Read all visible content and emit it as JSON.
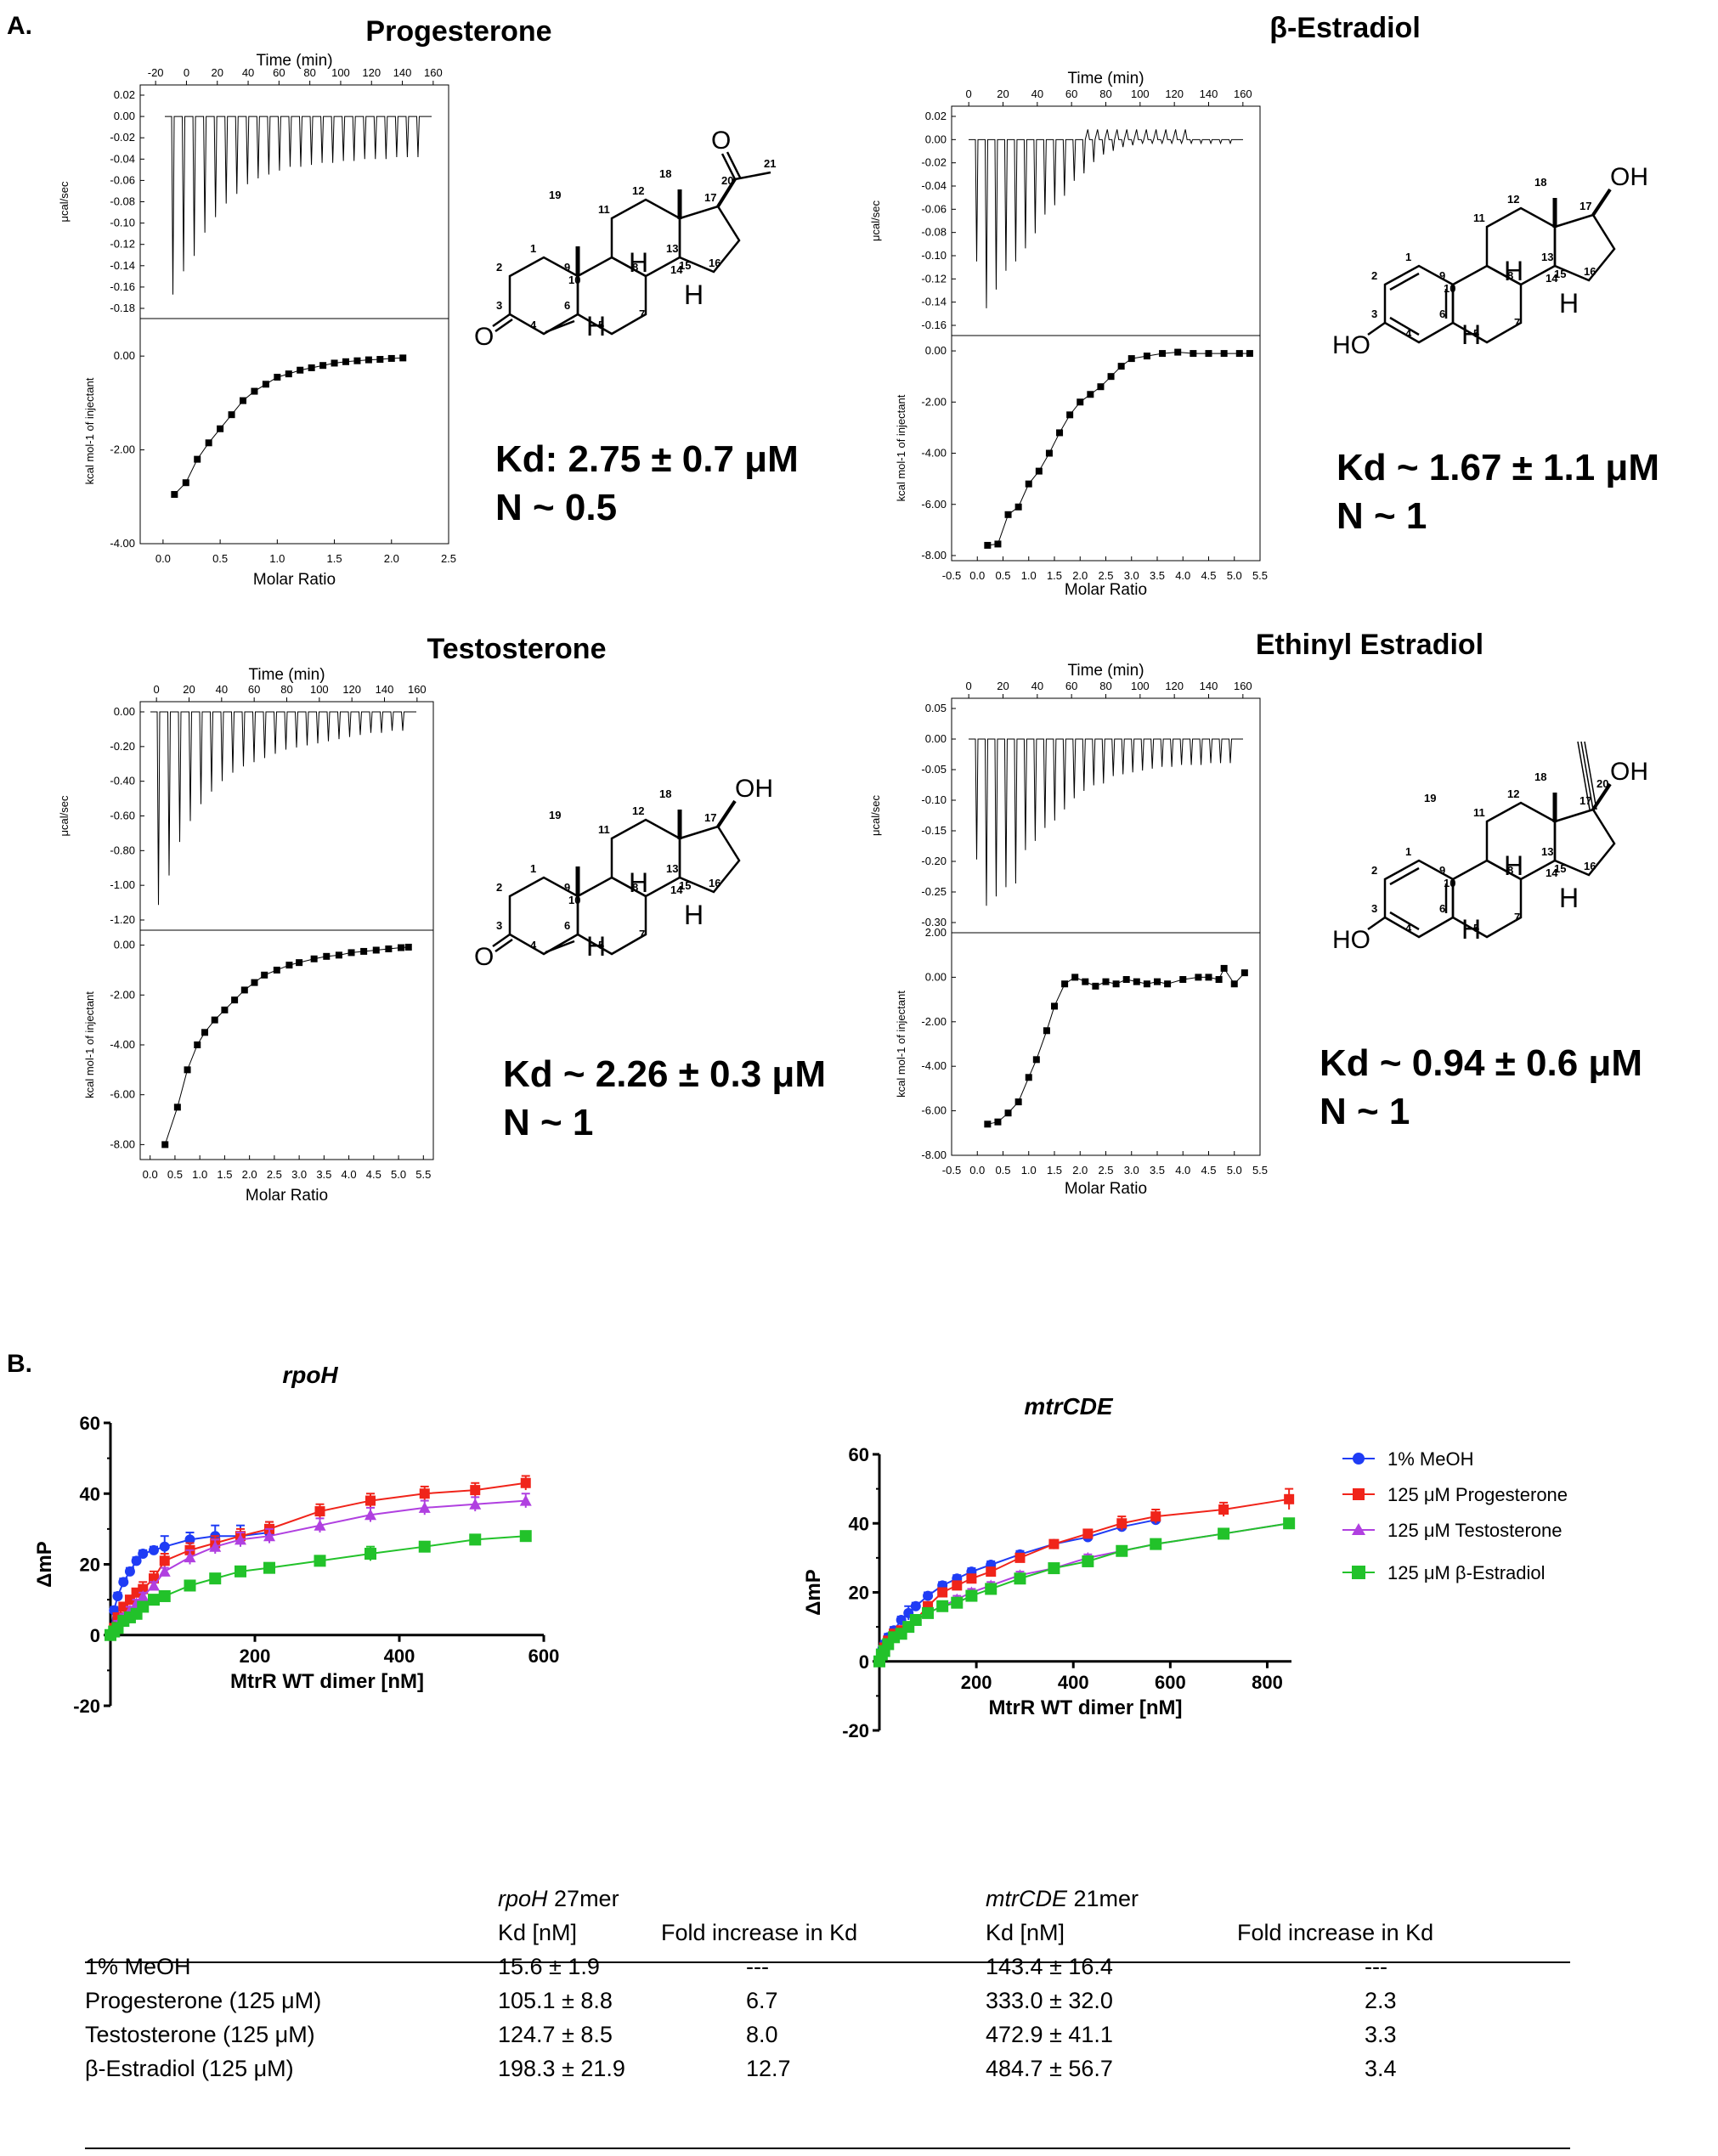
{
  "panel_a": {
    "label": "A.",
    "itc": [
      {
        "compound": "Progesterone",
        "kd_line": "Kd: 2.75 ± 0.7 μM",
        "n_line": "N ~ 0.5",
        "time_label": "Time (min)",
        "time_ticks": [
          "-20",
          "0",
          "20",
          "40",
          "60",
          "80",
          "100",
          "120",
          "140",
          "160"
        ],
        "raw_ylabel": "μcal/sec",
        "raw_ticks": [
          "0.02",
          "0.00",
          "-0.02",
          "-0.04",
          "-0.06",
          "-0.08",
          "-0.10",
          "-0.12",
          "-0.14",
          "-0.16",
          "-0.18"
        ],
        "fit_ylabel": "kcal mol-1 of injectant",
        "fit_ticks": [
          "0.00",
          "-2.00",
          "-4.00"
        ],
        "x_label": "Molar Ratio",
        "x_ticks": [
          "0.0",
          "0.5",
          "1.0",
          "1.5",
          "2.0",
          "2.5"
        ]
      },
      {
        "compound": "β-Estradiol",
        "kd_line": "Kd ~ 1.67 ± 1.1  μM",
        "n_line": "N ~ 1",
        "time_label": "Time (min)",
        "time_ticks": [
          "0",
          "20",
          "40",
          "60",
          "80",
          "100",
          "120",
          "140",
          "160"
        ],
        "raw_ylabel": "μcal/sec",
        "raw_ticks": [
          "0.02",
          "0.00",
          "-0.02",
          "-0.04",
          "-0.06",
          "-0.08",
          "-0.10",
          "-0.12",
          "-0.14",
          "-0.16"
        ],
        "fit_ylabel": "kcal mol-1 of injectant",
        "fit_ticks": [
          "0.00",
          "-2.00",
          "-4.00",
          "-6.00",
          "-8.00"
        ],
        "x_label": "Molar Ratio",
        "x_ticks": [
          "-0.5",
          "0.0",
          "0.5",
          "1.0",
          "1.5",
          "2.0",
          "2.5",
          "3.0",
          "3.5",
          "4.0",
          "4.5",
          "5.0",
          "5.5"
        ]
      },
      {
        "compound": "Testosterone",
        "kd_line": "Kd ~ 2.26 ± 0.3 μM",
        "n_line": "N ~ 1",
        "time_label": "Time (min)",
        "time_ticks": [
          "0",
          "20",
          "40",
          "60",
          "80",
          "100",
          "120",
          "140",
          "160"
        ],
        "raw_ylabel": "μcal/sec",
        "raw_ticks": [
          "0.00",
          "-0.20",
          "-0.40",
          "-0.60",
          "-0.80",
          "-1.00",
          "-1.20"
        ],
        "fit_ylabel": "kcal mol-1 of injectant",
        "fit_ticks": [
          "0.00",
          "-2.00",
          "-4.00",
          "-6.00",
          "-8.00"
        ],
        "x_label": "Molar Ratio",
        "x_ticks": [
          "0.0",
          "0.5",
          "1.0",
          "1.5",
          "2.0",
          "2.5",
          "3.0",
          "3.5",
          "4.0",
          "4.5",
          "5.0",
          "5.5"
        ]
      },
      {
        "compound": "Ethinyl Estradiol",
        "kd_line": "Kd ~ 0.94 ± 0.6 μM",
        "n_line": "N ~ 1",
        "time_label": "Time (min)",
        "time_ticks": [
          "0",
          "20",
          "40",
          "60",
          "80",
          "100",
          "120",
          "140",
          "160"
        ],
        "raw_ylabel": "μcal/sec",
        "raw_ticks": [
          "0.05",
          "0.00",
          "-0.05",
          "-0.10",
          "-0.15",
          "-0.20",
          "-0.25",
          "-0.30"
        ],
        "fit_ylabel": "kcal mol-1 of injectant",
        "fit_ticks": [
          "2.00",
          "0.00",
          "-2.00",
          "-4.00",
          "-6.00",
          "-8.00"
        ],
        "x_label": "Molar Ratio",
        "x_ticks": [
          "-0.5",
          "0.0",
          "0.5",
          "1.0",
          "1.5",
          "2.0",
          "2.5",
          "3.0",
          "3.5",
          "4.0",
          "4.5",
          "5.0",
          "5.5"
        ]
      }
    ],
    "structures": {
      "heteroatoms": {
        "ketone_o": "O",
        "hydroxyl": "OH",
        "phenol": "HO",
        "hydrogen": "H"
      },
      "progesterone_numbers": [
        "1",
        "2",
        "3",
        "4",
        "5",
        "6",
        "7",
        "8",
        "9",
        "10",
        "11",
        "12",
        "13",
        "14",
        "15",
        "16",
        "17",
        "18",
        "19",
        "20",
        "21"
      ],
      "estradiol_numbers": [
        "1",
        "2",
        "3",
        "4",
        "5",
        "6",
        "7",
        "8",
        "9",
        "10",
        "11",
        "12",
        "13",
        "14",
        "15",
        "16",
        "17",
        "18"
      ],
      "testosterone_numbers": [
        "1",
        "2",
        "3",
        "4",
        "5",
        "6",
        "7",
        "8",
        "9",
        "10",
        "11",
        "12",
        "13",
        "14",
        "15",
        "16",
        "17",
        "18",
        "19"
      ],
      "ethinyl_numbers": [
        "1",
        "2",
        "3",
        "4",
        "5",
        "6",
        "7",
        "8",
        "9",
        "10",
        "11",
        "12",
        "13",
        "14",
        "15",
        "16",
        "17",
        "18",
        "19",
        "20"
      ]
    }
  },
  "panel_b": {
    "label": "B.",
    "legend": [
      "1% MeOH",
      "125 μM Progesterone",
      "125 μM Testosterone",
      "125 μM β-Estradiol"
    ],
    "colors": {
      "meoh": "#1f3cf5",
      "progesterone": "#f0241a",
      "testosterone": "#b040e0",
      "estradiol": "#22c22a"
    }
  },
  "chart_data": [
    {
      "type": "scatter",
      "title": "rpoH",
      "xlabel": "MtrR WT dimer [nM]",
      "ylabel": "ΔmP",
      "xlim": [
        0,
        600
      ],
      "ylim": [
        -20,
        60
      ],
      "x_ticks": [
        "200",
        "400",
        "600"
      ],
      "y_ticks": [
        "60",
        "40",
        "20",
        "0",
        "-20"
      ],
      "series": [
        {
          "name": "1% MeOH",
          "x": [
            0,
            5,
            10,
            18,
            27,
            36,
            45,
            60,
            75,
            110,
            145,
            180,
            220
          ],
          "y": [
            0,
            7,
            11,
            15,
            18,
            21,
            23,
            24,
            25,
            27,
            28,
            28,
            29
          ],
          "err": [
            1,
            1,
            1,
            1,
            1,
            1,
            1,
            1,
            3,
            2,
            3,
            3,
            3
          ]
        },
        {
          "name": "125 μM Progesterone",
          "x": [
            0,
            5,
            10,
            18,
            27,
            36,
            45,
            60,
            75,
            110,
            145,
            180,
            220,
            290,
            360,
            435,
            505,
            575
          ],
          "y": [
            0,
            2,
            5,
            8,
            10,
            12,
            13,
            16,
            21,
            24,
            26,
            28,
            30,
            35,
            38,
            40,
            41,
            43
          ],
          "err": [
            1,
            1,
            1,
            1,
            1,
            1,
            2,
            2,
            2,
            2,
            2,
            2,
            2,
            2,
            2,
            2,
            2,
            2
          ]
        },
        {
          "name": "125 μM Testosterone",
          "x": [
            0,
            5,
            10,
            18,
            27,
            36,
            45,
            60,
            75,
            110,
            145,
            180,
            220,
            290,
            360,
            435,
            505,
            575
          ],
          "y": [
            0,
            1,
            3,
            5,
            7,
            9,
            11,
            14,
            18,
            22,
            25,
            27,
            28,
            31,
            34,
            36,
            37,
            38
          ],
          "err": [
            1,
            1,
            1,
            1,
            1,
            1,
            1,
            1,
            1,
            2,
            2,
            2,
            2,
            2,
            2,
            2,
            2,
            2
          ]
        },
        {
          "name": "125 μM β-Estradiol",
          "x": [
            0,
            5,
            10,
            18,
            27,
            36,
            45,
            60,
            75,
            110,
            145,
            180,
            220,
            290,
            360,
            435,
            505,
            575
          ],
          "y": [
            0,
            1,
            2,
            4,
            5,
            6,
            8,
            10,
            11,
            14,
            16,
            18,
            19,
            21,
            23,
            25,
            27,
            28
          ],
          "err": [
            1,
            1,
            1,
            1,
            1,
            1,
            1,
            1,
            1,
            1,
            1,
            1,
            1,
            1,
            2,
            1,
            1,
            1
          ]
        }
      ]
    },
    {
      "type": "scatter",
      "title": "mtrCDE",
      "xlabel": "MtrR WT dimer [nM]",
      "ylabel": "ΔmP",
      "xlim": [
        0,
        850
      ],
      "ylim": [
        -20,
        60
      ],
      "x_ticks": [
        "200",
        "400",
        "600",
        "800"
      ],
      "y_ticks": [
        "60",
        "40",
        "20",
        "0",
        "-20"
      ],
      "series": [
        {
          "name": "1% MeOH",
          "x": [
            0,
            5,
            10,
            18,
            30,
            45,
            60,
            75,
            100,
            130,
            160,
            190,
            230,
            290,
            360,
            430,
            500,
            570
          ],
          "y": [
            0,
            3,
            5,
            7,
            9,
            12,
            14,
            16,
            19,
            22,
            24,
            26,
            28,
            31,
            34,
            36,
            39,
            41
          ],
          "err": [
            1,
            1,
            1,
            1,
            1,
            1,
            2,
            1,
            1,
            1,
            1,
            1,
            1,
            1,
            1,
            1,
            1,
            1
          ]
        },
        {
          "name": "125 μM Progesterone",
          "x": [
            0,
            5,
            10,
            18,
            30,
            45,
            60,
            75,
            100,
            130,
            160,
            190,
            230,
            290,
            360,
            430,
            500,
            570,
            710,
            845
          ],
          "y": [
            0,
            2,
            4,
            6,
            8,
            9,
            10,
            12,
            16,
            20,
            22,
            24,
            26,
            30,
            34,
            37,
            40,
            42,
            44,
            47
          ],
          "err": [
            1,
            1,
            1,
            1,
            1,
            1,
            1,
            1,
            1,
            1,
            1,
            1,
            1,
            1,
            1,
            1,
            2,
            2,
            2,
            3
          ]
        },
        {
          "name": "125 μM Testosterone",
          "x": [
            0,
            5,
            10,
            18,
            30,
            45,
            60,
            75,
            100,
            130,
            160,
            190,
            230,
            290,
            360,
            430,
            500,
            570,
            710,
            845
          ],
          "y": [
            0,
            2,
            3,
            5,
            7,
            8,
            10,
            12,
            14,
            16,
            18,
            20,
            22,
            25,
            27,
            30,
            32,
            34,
            37,
            40
          ],
          "err": [
            1,
            1,
            1,
            1,
            1,
            1,
            1,
            1,
            1,
            1,
            1,
            1,
            1,
            1,
            1,
            1,
            1,
            1,
            1,
            1
          ]
        },
        {
          "name": "125 μM β-Estradiol",
          "x": [
            0,
            5,
            10,
            18,
            30,
            45,
            60,
            75,
            100,
            130,
            160,
            190,
            230,
            290,
            360,
            430,
            500,
            570,
            710,
            845
          ],
          "y": [
            0,
            2,
            3,
            5,
            7,
            8,
            10,
            12,
            14,
            16,
            17,
            19,
            21,
            24,
            27,
            29,
            32,
            34,
            37,
            40
          ],
          "err": [
            1,
            1,
            1,
            1,
            1,
            1,
            1,
            1,
            1,
            1,
            1,
            1,
            1,
            1,
            1,
            1,
            1,
            1,
            1,
            1
          ]
        }
      ]
    }
  ],
  "table": {
    "group_headers": {
      "rpoh_name": "rpoH",
      "rpoh_suffix": " 27mer",
      "mtr_name": "mtrCDE",
      "mtr_suffix": " 21mer"
    },
    "col_headers": {
      "rpoh_kd": "Kd [nM]",
      "rpoh_fold": "Fold increase in Kd",
      "mtr_kd": "Kd [nM]",
      "mtr_fold": "Fold increase in Kd"
    },
    "rows": [
      {
        "condition": "1% MeOH",
        "rpoh_kd": "15.6 ± 1.9",
        "rpoh_fold": "---",
        "mtr_kd": "143.4 ± 16.4",
        "mtr_fold": "---"
      },
      {
        "condition": "Progesterone (125 μM)",
        "rpoh_kd": "105.1 ± 8.8",
        "rpoh_fold": "6.7",
        "mtr_kd": "333.0 ± 32.0",
        "mtr_fold": "2.3"
      },
      {
        "condition": "Testosterone (125 μM)",
        "rpoh_kd": "124.7  ± 8.5",
        "rpoh_fold": "8.0",
        "mtr_kd": "472.9  ± 41.1",
        "mtr_fold": "3.3"
      },
      {
        "condition": "β-Estradiol (125 μM)",
        "rpoh_kd": "198.3  ±  21.9",
        "rpoh_fold": "12.7",
        "mtr_kd": "484.7  ± 56.7",
        "mtr_fold": "3.4"
      }
    ]
  }
}
